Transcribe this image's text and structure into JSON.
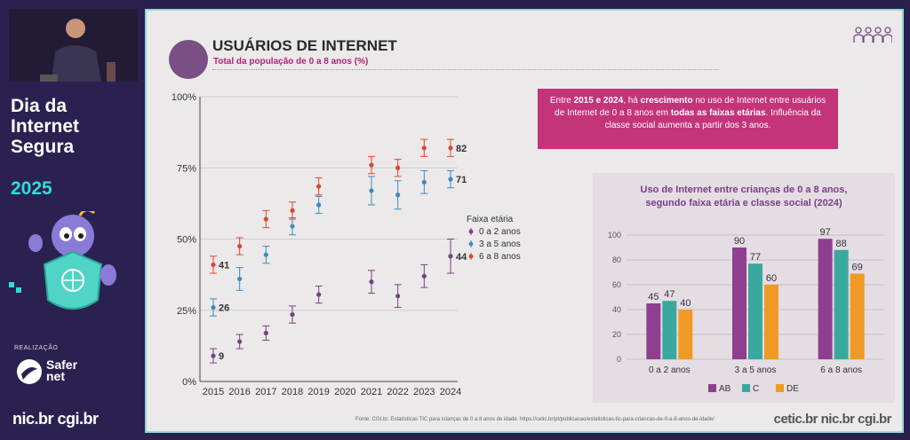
{
  "event": {
    "title_lines": [
      "Dia da",
      "Internet",
      "Segura"
    ],
    "year": "2025",
    "realizacao": "REALIZAÇÃO",
    "safer_lines": [
      "Safer",
      "net"
    ],
    "nic": "nic.br cgi.br"
  },
  "slide": {
    "title": "USUÁRIOS DE INTERNET",
    "subtitle": "Total da população de 0 a 8 anos (%)",
    "callout": {
      "p1": "Entre ",
      "b1": "2015 e 2024",
      "p2": ", há ",
      "b2": "crescimento",
      "p3": " no uso de Internet entre usuários de Internet de 0 a 8 anos em ",
      "b3": "todas as faixas etárias",
      "p4": ". Influência da classe social aumenta a partir dos 3 anos."
    },
    "bar_title_lines": [
      "Uso de Internet entre crianças de 0 a 8 anos,",
      "segundo faixa etária e classe social (2024)"
    ],
    "source": "Fonte: CGI.br, Estatísticas TIC para crianças de 0 a 8 anos de idade. https://cetic.br/pt/publicacao/estatisticas-tic-para-criancas-de-0-a-8-anos-de-idade/",
    "footer": "cetic.br nic.br cgi.br"
  },
  "chart_data": [
    {
      "type": "scatter",
      "x": [
        2015,
        2016,
        2017,
        2018,
        2019,
        2020,
        2021,
        2022,
        2023,
        2024
      ],
      "yticks": [
        "0%",
        "25%",
        "50%",
        "75%",
        "100%"
      ],
      "ylim": [
        0,
        100
      ],
      "legend_title": "Faixa etária",
      "legend_position": "right",
      "series": [
        {
          "name": "0 a 2 anos",
          "color": "#7b3f86",
          "values": [
            9,
            14,
            17,
            23.5,
            30.5,
            null,
            35,
            30,
            37,
            44
          ],
          "err": [
            2.5,
            2.5,
            2.5,
            3,
            3,
            null,
            4,
            4,
            4,
            6
          ],
          "labels": {
            "2015": "9",
            "2024": "44"
          }
        },
        {
          "name": "3 a 5 anos",
          "color": "#3b8bc0",
          "values": [
            26,
            36,
            44.5,
            54.5,
            62,
            null,
            67,
            65.5,
            70,
            71
          ],
          "err": [
            3,
            4,
            3,
            3,
            3,
            null,
            5,
            5,
            4,
            3
          ],
          "labels": {
            "2015": "26",
            "2024": "71"
          }
        },
        {
          "name": "6 a 8 anos",
          "color": "#e0452e",
          "values": [
            41,
            47.5,
            57,
            60,
            68.5,
            null,
            76,
            75,
            82,
            82
          ],
          "err": [
            3,
            3,
            3,
            3,
            3,
            null,
            3,
            3,
            3,
            3
          ],
          "labels": {
            "2015": "41",
            "2024": "82"
          }
        }
      ]
    },
    {
      "type": "bar",
      "categories": [
        "0 a 2 anos",
        "3 a 5 anos",
        "6 a 8 anos"
      ],
      "yticks": [
        "0",
        "20",
        "40",
        "60",
        "80",
        "100"
      ],
      "ylim": [
        0,
        100
      ],
      "legend_position": "bottom",
      "series": [
        {
          "name": "AB",
          "color": "#8e3f8f",
          "values": [
            45,
            90,
            97
          ]
        },
        {
          "name": "C",
          "color": "#3ba89e",
          "values": [
            47,
            77,
            88
          ]
        },
        {
          "name": "DE",
          "color": "#f09a25",
          "values": [
            40,
            60,
            69
          ]
        }
      ]
    }
  ]
}
